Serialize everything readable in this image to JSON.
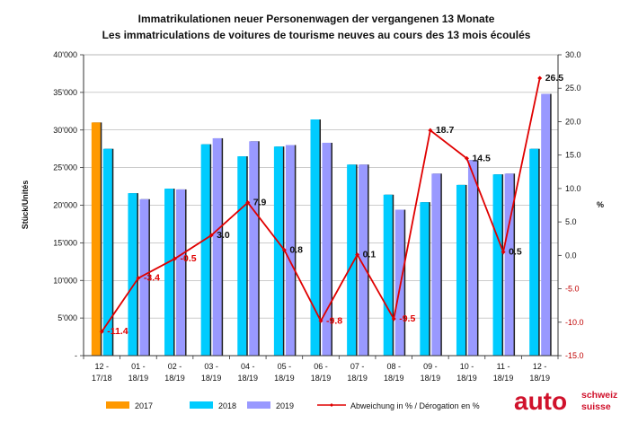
{
  "chart_data": {
    "type": "bar",
    "title": "Immatrikulationen neuer Personenwagen der vergangenen 13 Monate",
    "subtitle": "Les immatriculations de voitures de tourisme neuves au cours des 13 mois écoulés",
    "ylabel": "Stück/Unités",
    "y2label": "%",
    "ylim": [
      0,
      40000
    ],
    "y2lim": [
      -15,
      30
    ],
    "y_ticks": [
      "-",
      "5'000",
      "10'000",
      "15'000",
      "20'000",
      "25'000",
      "30'000",
      "35'000",
      "40'000"
    ],
    "y2_ticks": [
      "-15.0",
      "-10.0",
      "-5.0",
      "0.0",
      "5.0",
      "10.0",
      "15.0",
      "20.0",
      "25.0",
      "30.0"
    ],
    "categories": [
      [
        "12 -",
        "17/18"
      ],
      [
        "01 -",
        "18/19"
      ],
      [
        "02 -",
        "18/19"
      ],
      [
        "03 -",
        "18/19"
      ],
      [
        "04 -",
        "18/19"
      ],
      [
        "05 -",
        "18/19"
      ],
      [
        "06 -",
        "18/19"
      ],
      [
        "07 -",
        "18/19"
      ],
      [
        "08 -",
        "18/19"
      ],
      [
        "09 -",
        "18/19"
      ],
      [
        "10 -",
        "18/19"
      ],
      [
        "11 -",
        "18/19"
      ],
      [
        "12 -",
        "18/19"
      ]
    ],
    "series": [
      {
        "name": "2017",
        "color": "#FF9900",
        "values": [
          31000,
          null,
          null,
          null,
          null,
          null,
          null,
          null,
          null,
          null,
          null,
          null,
          null
        ]
      },
      {
        "name": "2018",
        "color": "#00CCFF",
        "values": [
          27500,
          21600,
          22200,
          28100,
          26500,
          27800,
          31400,
          25400,
          21400,
          20400,
          22700,
          24100,
          27500
        ]
      },
      {
        "name": "2019",
        "color": "#9999FF",
        "values": [
          null,
          20800,
          22100,
          28900,
          28500,
          28000,
          28300,
          25400,
          19400,
          24200,
          26000,
          24200,
          34800
        ]
      }
    ],
    "line_series": {
      "name": "Abweichung in % / Dérogation en %",
      "color": "#E00000",
      "values": [
        -11.4,
        -3.4,
        -0.5,
        3.0,
        7.9,
        0.8,
        -9.8,
        0.1,
        -9.5,
        18.7,
        14.5,
        0.5,
        26.5
      ],
      "labels": [
        "-11.4",
        "-3.4",
        "-0.5",
        "3.0",
        "7.9",
        "0.8",
        "-9.8",
        "0.1",
        "-9.5",
        "18.7",
        "14.5",
        "0.5",
        "26.5"
      ],
      "label_colors": [
        "#E00000",
        "#E00000",
        "#E00000",
        "#111111",
        "#111111",
        "#111111",
        "#E00000",
        "#111111",
        "#E00000",
        "#111111",
        "#111111",
        "#111111",
        "#111111"
      ]
    },
    "legend": [
      "2017",
      "2018",
      "2019",
      "Abweichung in % / Dérogation en %"
    ]
  },
  "logo": {
    "main": "auto",
    "line1": "schweiz",
    "line2": "suisse"
  }
}
